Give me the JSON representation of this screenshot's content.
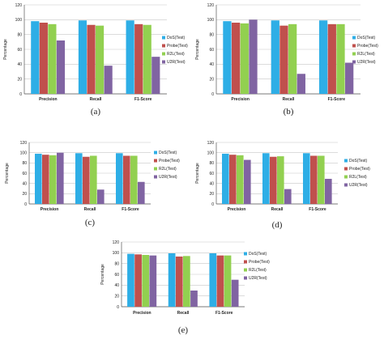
{
  "chart_data": [
    {
      "type": "bar",
      "caption": "(a)",
      "ylabel": "Percentage",
      "categories": [
        "Precision",
        "Recall",
        "F1-Score"
      ],
      "ylim": [
        0,
        120
      ],
      "yticks": [
        0,
        20,
        40,
        60,
        80,
        100,
        120
      ],
      "legend_position": "right",
      "series": [
        {
          "name": "DoS(Test)",
          "color": "#2eaee6",
          "values": [
            98,
            99,
            99
          ]
        },
        {
          "name": "Probe(Test)",
          "color": "#c0504d",
          "values": [
            96,
            93,
            94
          ]
        },
        {
          "name": "R2L(Test)",
          "color": "#92d050",
          "values": [
            94,
            92,
            93
          ]
        },
        {
          "name": "U2R(Test)",
          "color": "#8064a2",
          "values": [
            72,
            38,
            50
          ]
        }
      ]
    },
    {
      "type": "bar",
      "caption": "(b)",
      "ylabel": "Percentage",
      "categories": [
        "Precision",
        "Recall",
        "F1-Score"
      ],
      "ylim": [
        0,
        120
      ],
      "yticks": [
        0,
        20,
        40,
        60,
        80,
        100,
        120
      ],
      "legend_position": "right",
      "series": [
        {
          "name": "DoS(Test)",
          "color": "#2eaee6",
          "values": [
            98,
            99,
            99
          ]
        },
        {
          "name": "Probe(Test)",
          "color": "#c0504d",
          "values": [
            96,
            92,
            94
          ]
        },
        {
          "name": "R2L(Test)",
          "color": "#92d050",
          "values": [
            95,
            94,
            94
          ]
        },
        {
          "name": "U2R(Test)",
          "color": "#8064a2",
          "values": [
            100,
            27,
            42
          ]
        }
      ]
    },
    {
      "type": "bar",
      "caption": "(c)",
      "ylabel": "Percentage",
      "categories": [
        "Precision",
        "Recall",
        "F1-Score"
      ],
      "ylim": [
        0,
        120
      ],
      "yticks": [
        0,
        20,
        40,
        60,
        80,
        100,
        120
      ],
      "legend_position": "right",
      "series": [
        {
          "name": "DoS(Test)",
          "color": "#2eaee6",
          "values": [
            98,
            99,
            99
          ]
        },
        {
          "name": "Probe(Test)",
          "color": "#c0504d",
          "values": [
            96,
            92,
            94
          ]
        },
        {
          "name": "R2L(Test)",
          "color": "#92d050",
          "values": [
            95,
            94,
            94
          ]
        },
        {
          "name": "U2R(Test)",
          "color": "#8064a2",
          "values": [
            100,
            28,
            43
          ]
        }
      ]
    },
    {
      "type": "bar",
      "caption": "(d)",
      "ylabel": "Percentage",
      "categories": [
        "Precision",
        "Recall",
        "F1-Score"
      ],
      "ylim": [
        0,
        120
      ],
      "yticks": [
        0,
        20,
        40,
        60,
        80,
        100,
        120
      ],
      "legend_position": "right",
      "series": [
        {
          "name": "DoS(Test)",
          "color": "#2eaee6",
          "values": [
            98,
            99,
            99
          ]
        },
        {
          "name": "Probe(Test)",
          "color": "#c0504d",
          "values": [
            96,
            92,
            94
          ]
        },
        {
          "name": "R2L(Test)",
          "color": "#92d050",
          "values": [
            95,
            93,
            94
          ]
        },
        {
          "name": "U2R(Test)",
          "color": "#8064a2",
          "values": [
            86,
            29,
            49
          ]
        }
      ]
    },
    {
      "type": "bar",
      "caption": "(e)",
      "ylabel": "Percentage",
      "categories": [
        "Precision",
        "Recall",
        "F1-Score"
      ],
      "ylim": [
        0,
        120
      ],
      "yticks": [
        0,
        20,
        40,
        60,
        80,
        100,
        120
      ],
      "legend_position": "right",
      "series": [
        {
          "name": "DoS(Test)",
          "color": "#2eaee6",
          "values": [
            98,
            99,
            99
          ]
        },
        {
          "name": "Probe(Test)",
          "color": "#c0504d",
          "values": [
            97,
            93,
            95
          ]
        },
        {
          "name": "R2L(Test)",
          "color": "#92d050",
          "values": [
            96,
            94,
            95
          ]
        },
        {
          "name": "U2R(Test)",
          "color": "#8064a2",
          "values": [
            95,
            30,
            50
          ]
        }
      ]
    }
  ]
}
